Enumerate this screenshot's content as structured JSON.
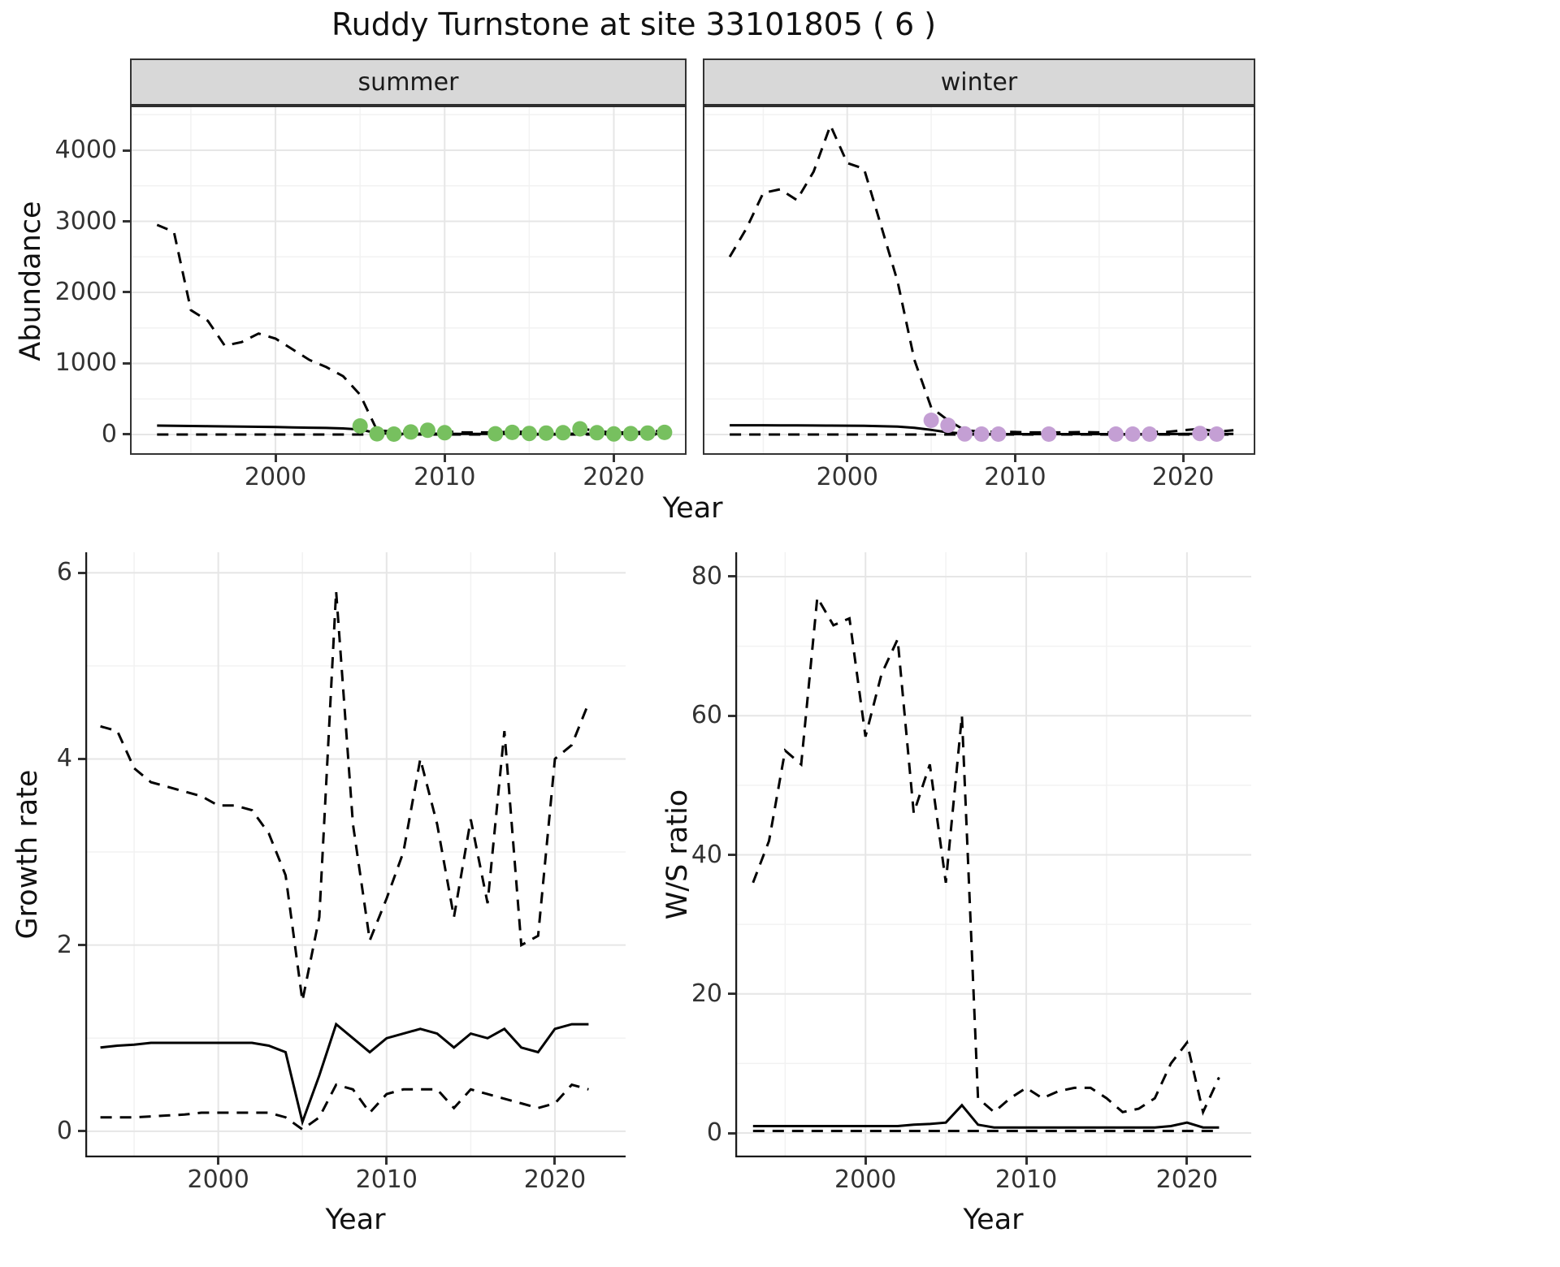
{
  "title": "Ruddy Turnstone at site 33101805 ( 6 )",
  "colors": {
    "summer_points": "#77c05f",
    "winter_points": "#c49fd4",
    "line": "#000000",
    "grid_major": "#e6e6e6",
    "grid_minor": "#f2f2f2",
    "strip_bg": "#d8d8d8",
    "panel_border": "#333333",
    "tick_text": "#333333"
  },
  "chart_data": [
    {
      "id": "abundance-summer",
      "type": "line",
      "facet": "summer",
      "ylabel": "Abundance",
      "xlabel": "Year",
      "grid": true,
      "legend": "none",
      "xlim": [
        1991.4,
        2024.3
      ],
      "ylim": [
        -286,
        4606
      ],
      "xticks": [
        2000,
        2010,
        2020
      ],
      "yticks": [
        0,
        1000,
        2000,
        3000,
        4000
      ],
      "x": [
        1993,
        1994,
        1995,
        1996,
        1997,
        1998,
        1999,
        2000,
        2001,
        2002,
        2003,
        2004,
        2005,
        2006,
        2007,
        2008,
        2009,
        2010,
        2011,
        2012,
        2013,
        2014,
        2015,
        2016,
        2017,
        2018,
        2019,
        2020,
        2021,
        2022,
        2023
      ],
      "series": [
        {
          "name": "upper-ci",
          "style": "dashed",
          "y": [
            2950,
            2850,
            1750,
            1600,
            1250,
            1300,
            1420,
            1350,
            1200,
            1050,
            950,
            820,
            560,
            60,
            40,
            50,
            70,
            45,
            30,
            30,
            30,
            40,
            35,
            35,
            45,
            90,
            45,
            30,
            30,
            40,
            55
          ]
        },
        {
          "name": "estimate",
          "style": "solid",
          "y": [
            125,
            122,
            120,
            117,
            114,
            111,
            108,
            105,
            100,
            96,
            92,
            85,
            70,
            20,
            10,
            10,
            12,
            10,
            8,
            8,
            8,
            8,
            8,
            8,
            8,
            12,
            8,
            8,
            8,
            8,
            10
          ]
        },
        {
          "name": "lower-ci",
          "style": "dashed",
          "y": [
            0,
            0,
            0,
            0,
            0,
            0,
            0,
            0,
            0,
            0,
            0,
            0,
            0,
            0,
            0,
            0,
            0,
            0,
            0,
            0,
            0,
            0,
            0,
            0,
            0,
            0,
            0,
            0,
            0,
            0,
            0
          ]
        }
      ],
      "points": {
        "name": "summer-observation-point",
        "color_key": "summer_points",
        "x": [
          2005,
          2006,
          2007,
          2008,
          2009,
          2010,
          2013,
          2014,
          2015,
          2016,
          2017,
          2018,
          2019,
          2020,
          2021,
          2022,
          2023
        ],
        "y": [
          120,
          10,
          5,
          35,
          60,
          25,
          10,
          30,
          15,
          20,
          25,
          80,
          25,
          8,
          12,
          20,
          30
        ]
      }
    },
    {
      "id": "abundance-winter",
      "type": "line",
      "facet": "winter",
      "ylabel": "",
      "xlabel": "Year",
      "grid": true,
      "legend": "none",
      "xlim": [
        1991.4,
        2024.3
      ],
      "ylim": [
        -286,
        4606
      ],
      "xticks": [
        2000,
        2010,
        2020
      ],
      "yticks": [
        0,
        1000,
        2000,
        3000,
        4000
      ],
      "x": [
        1993,
        1994,
        1995,
        1996,
        1997,
        1998,
        1999,
        2000,
        2001,
        2002,
        2003,
        2004,
        2005,
        2006,
        2007,
        2008,
        2009,
        2010,
        2011,
        2012,
        2013,
        2014,
        2015,
        2016,
        2017,
        2018,
        2019,
        2020,
        2021,
        2022,
        2023
      ],
      "series": [
        {
          "name": "upper-ci",
          "style": "dashed",
          "y": [
            2500,
            2900,
            3400,
            3450,
            3300,
            3700,
            4350,
            3820,
            3740,
            2950,
            2150,
            1050,
            380,
            200,
            60,
            40,
            40,
            35,
            30,
            30,
            30,
            35,
            30,
            30,
            40,
            40,
            35,
            60,
            80,
            40,
            60
          ]
        },
        {
          "name": "estimate",
          "style": "solid",
          "y": [
            130,
            130,
            130,
            129,
            128,
            127,
            126,
            124,
            122,
            118,
            112,
            95,
            65,
            30,
            12,
            8,
            6,
            5,
            5,
            5,
            5,
            5,
            5,
            5,
            6,
            6,
            5,
            8,
            10,
            6,
            8
          ]
        },
        {
          "name": "lower-ci",
          "style": "dashed",
          "y": [
            0,
            0,
            0,
            0,
            0,
            0,
            0,
            0,
            0,
            0,
            0,
            0,
            0,
            0,
            0,
            0,
            0,
            0,
            0,
            0,
            0,
            0,
            0,
            0,
            0,
            0,
            0,
            0,
            0,
            0,
            0
          ]
        }
      ],
      "points": {
        "name": "winter-observation-point",
        "color_key": "winter_points",
        "x": [
          2005,
          2006,
          2007,
          2008,
          2009,
          2012,
          2016,
          2017,
          2018,
          2021,
          2022
        ],
        "y": [
          200,
          130,
          8,
          5,
          5,
          5,
          5,
          5,
          5,
          15,
          5
        ]
      }
    },
    {
      "id": "growth-rate",
      "type": "line",
      "facet": "",
      "ylabel": "Growth rate",
      "xlabel": "Year",
      "grid": true,
      "legend": "none",
      "xlim": [
        1992.1,
        2024.2
      ],
      "ylim": [
        -0.28,
        6.22
      ],
      "xticks": [
        2000,
        2010,
        2020
      ],
      "yticks": [
        0,
        2,
        4,
        6
      ],
      "x": [
        1993,
        1994,
        1995,
        1996,
        1997,
        1998,
        1999,
        2000,
        2001,
        2002,
        2003,
        2004,
        2005,
        2006,
        2007,
        2008,
        2009,
        2010,
        2011,
        2012,
        2013,
        2014,
        2015,
        2016,
        2017,
        2018,
        2019,
        2020,
        2021,
        2022
      ],
      "series": [
        {
          "name": "upper-ci",
          "style": "dashed",
          "y": [
            4.35,
            4.3,
            3.9,
            3.75,
            3.7,
            3.65,
            3.6,
            3.5,
            3.5,
            3.45,
            3.2,
            2.75,
            1.4,
            2.3,
            5.8,
            3.3,
            2.05,
            2.5,
            3.0,
            4.0,
            3.3,
            2.3,
            3.35,
            2.45,
            4.3,
            2.0,
            2.1,
            4.0,
            4.15,
            4.6
          ]
        },
        {
          "name": "estimate",
          "style": "solid",
          "y": [
            0.9,
            0.92,
            0.93,
            0.95,
            0.95,
            0.95,
            0.95,
            0.95,
            0.95,
            0.95,
            0.92,
            0.85,
            0.1,
            0.6,
            1.15,
            1.0,
            0.85,
            1.0,
            1.05,
            1.1,
            1.05,
            0.9,
            1.05,
            1.0,
            1.1,
            0.9,
            0.85,
            1.1,
            1.15,
            1.15
          ]
        },
        {
          "name": "lower-ci",
          "style": "dashed",
          "y": [
            0.15,
            0.15,
            0.15,
            0.16,
            0.17,
            0.18,
            0.2,
            0.2,
            0.2,
            0.2,
            0.2,
            0.15,
            0.02,
            0.15,
            0.5,
            0.45,
            0.2,
            0.4,
            0.45,
            0.45,
            0.45,
            0.25,
            0.45,
            0.4,
            0.35,
            0.3,
            0.25,
            0.3,
            0.5,
            0.45
          ]
        }
      ]
    },
    {
      "id": "ws-ratio",
      "type": "line",
      "facet": "",
      "ylabel": "W/S ratio",
      "xlabel": "Year",
      "grid": true,
      "legend": "none",
      "xlim": [
        1991.9,
        2024.0
      ],
      "ylim": [
        -3.5,
        83.5
      ],
      "xticks": [
        2000,
        2010,
        2020
      ],
      "yticks": [
        0,
        20,
        40,
        60,
        80
      ],
      "x": [
        1993,
        1994,
        1995,
        1996,
        1997,
        1998,
        1999,
        2000,
        2001,
        2002,
        2003,
        2004,
        2005,
        2006,
        2007,
        2008,
        2009,
        2010,
        2011,
        2012,
        2013,
        2014,
        2015,
        2016,
        2017,
        2018,
        2019,
        2020,
        2021,
        2022
      ],
      "series": [
        {
          "name": "upper-ci",
          "style": "dashed",
          "y": [
            36,
            42,
            55,
            53,
            77,
            73,
            74,
            57,
            66,
            71,
            46,
            53,
            36,
            60,
            5,
            3,
            5,
            6.5,
            5,
            6,
            6.5,
            6.5,
            5,
            3,
            3.5,
            5,
            10,
            13,
            3,
            8
          ]
        },
        {
          "name": "estimate",
          "style": "solid",
          "y": [
            1,
            1,
            1,
            1,
            1,
            1,
            1,
            1,
            1,
            1,
            1.2,
            1.3,
            1.5,
            4,
            1.2,
            0.8,
            0.8,
            0.8,
            0.8,
            0.8,
            0.8,
            0.8,
            0.8,
            0.8,
            0.8,
            0.8,
            1,
            1.5,
            0.8,
            0.8
          ]
        },
        {
          "name": "lower-ci",
          "style": "dashed",
          "y": [
            0.3,
            0.3,
            0.3,
            0.3,
            0.3,
            0.3,
            0.3,
            0.3,
            0.3,
            0.3,
            0.3,
            0.3,
            0.3,
            0.3,
            0.3,
            0.3,
            0.3,
            0.3,
            0.3,
            0.3,
            0.3,
            0.3,
            0.3,
            0.3,
            0.3,
            0.3,
            0.3,
            0.3,
            0.3,
            0.3
          ]
        }
      ]
    }
  ]
}
